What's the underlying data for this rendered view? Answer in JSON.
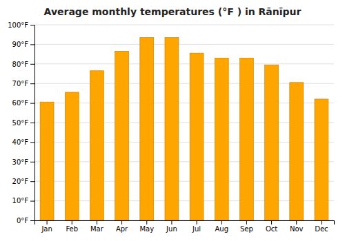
{
  "chart_data": {
    "type": "bar",
    "title": "Average monthly temperatures (°F ) in Rānīpur",
    "categories": [
      "Jan",
      "Feb",
      "Mar",
      "Apr",
      "May",
      "Jun",
      "Jul",
      "Aug",
      "Sep",
      "Oct",
      "Nov",
      "Dec"
    ],
    "values": [
      60.5,
      65.5,
      76.5,
      86.5,
      93.5,
      93.5,
      85.5,
      83,
      83,
      79.5,
      70.5,
      62
    ],
    "color": "#FFA500",
    "ylim": [
      0,
      100
    ],
    "yticks": [
      {
        "value": 0,
        "label": "0°F"
      },
      {
        "value": 10,
        "label": "10°F"
      },
      {
        "value": 20,
        "label": "20°F"
      },
      {
        "value": 30,
        "label": "30°F"
      },
      {
        "value": 40,
        "label": "40°F"
      },
      {
        "value": 50,
        "label": "50°F"
      },
      {
        "value": 60,
        "label": "60°F"
      },
      {
        "value": 70,
        "label": "70°F"
      },
      {
        "value": 80,
        "label": "80°F"
      },
      {
        "value": 90,
        "label": "90°F"
      },
      {
        "value": 100,
        "label": "100°F"
      }
    ],
    "grid": true
  }
}
